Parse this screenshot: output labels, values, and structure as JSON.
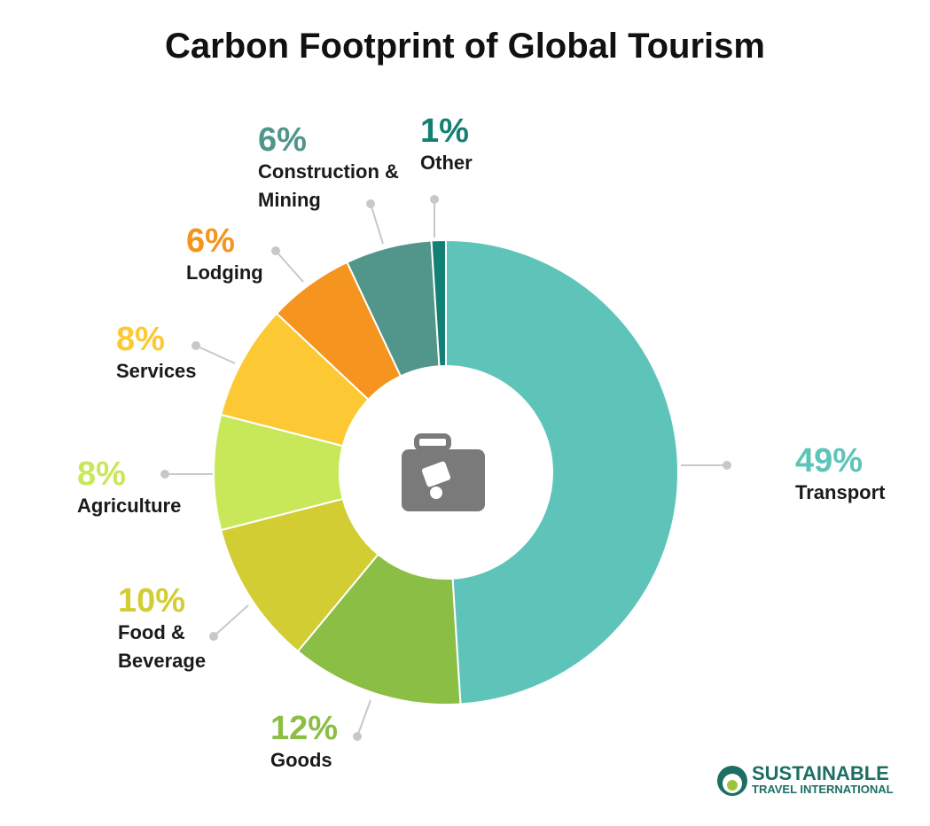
{
  "chart_data": {
    "type": "donut",
    "title": "Carbon Footprint of Global Tourism",
    "categories": [
      "Transport",
      "Goods",
      "Food & Beverage",
      "Agriculture",
      "Services",
      "Lodging",
      "Construction & Mining",
      "Other"
    ],
    "values": [
      49,
      12,
      10,
      8,
      8,
      6,
      6,
      1
    ],
    "value_labels": [
      "49%",
      "12%",
      "10%",
      "8%",
      "8%",
      "6%",
      "6%",
      "1%"
    ],
    "colors": [
      "#5ec4b9",
      "#8bbe45",
      "#d2cd33",
      "#c8e85a",
      "#fcc934",
      "#f5941f",
      "#52958a",
      "#128072"
    ]
  },
  "logo": {
    "name": "SUSTAINABLE",
    "subtitle": "TRAVEL INTERNATIONAL"
  }
}
